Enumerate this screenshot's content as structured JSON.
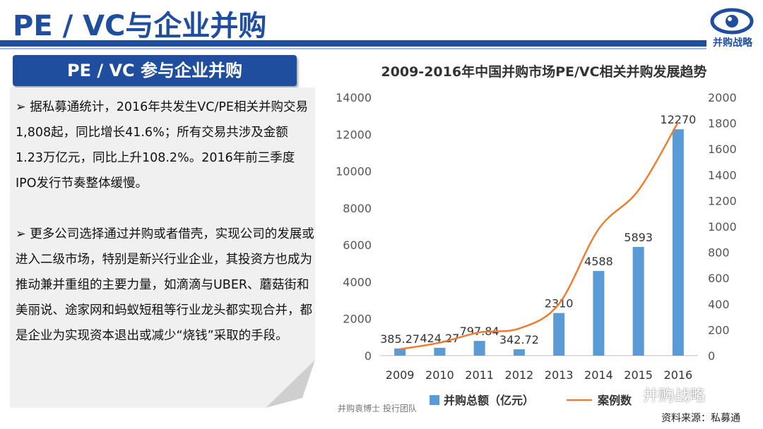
{
  "header": {
    "title": "PE / VC与企业并购",
    "logo_label": "并购战略"
  },
  "section": {
    "title": "PE / VC 参与企业并购"
  },
  "paragraphs": [
    "➢ 据私募通统计，2016年共发生VC/PE相关并购交易1,808起，同比增长41.6%；所有交易共涉及金额1.23万亿元，同比上升108.2%。2016年前三季度IPO发行节奏整体缓慢。",
    "➢ 更多公司选择通过并购或者借壳，实现公司的发展或进入二级市场，特别是新兴行业企业，其投资方也成为推动兼并重组的主要力量，如滴滴与UBER、蘑菇街和美丽说、途家网和蚂蚁短租等行业龙头都实现合并，都是企业为实现资本退出或减少“烧钱”采取的手段。"
  ],
  "footer": {
    "left": "并购袁博士 投行团队",
    "source": "资料来源：私募通",
    "watermark": "并购战略"
  },
  "colors": {
    "primary": "#1f4e9e",
    "bar": "#5b9bd5",
    "line": "#ed7d31"
  },
  "chart_data": {
    "type": "bar",
    "title": "2009-2016年中国并购市场PE/VC相关并购发展趋势",
    "categories": [
      "2009",
      "2010",
      "2011",
      "2012",
      "2013",
      "2014",
      "2015",
      "2016"
    ],
    "series": [
      {
        "name": "并购总额（亿元）",
        "type": "bar",
        "axis": "left",
        "values": [
          385.27,
          424.27,
          797.84,
          342.72,
          2310,
          4588,
          5893,
          12270
        ],
        "labels": [
          "385.27",
          "424.27",
          "797.84",
          "342.72",
          "2310",
          "4588",
          "5893",
          "12270"
        ]
      },
      {
        "name": "案例数",
        "type": "line",
        "axis": "right",
        "values": [
          50,
          100,
          180,
          210,
          400,
          980,
          1280,
          1808
        ]
      }
    ],
    "y_left": {
      "min": 0,
      "max": 14000,
      "ticks": [
        "0",
        "2000",
        "4000",
        "6000",
        "8000",
        "10000",
        "12000",
        "14000"
      ]
    },
    "y_right": {
      "min": 0,
      "max": 2000,
      "ticks": [
        "0",
        "200",
        "400",
        "600",
        "800",
        "1000",
        "1200",
        "1400",
        "1600",
        "1800",
        "2000"
      ]
    },
    "legend_position": "bottom",
    "grid": false
  }
}
